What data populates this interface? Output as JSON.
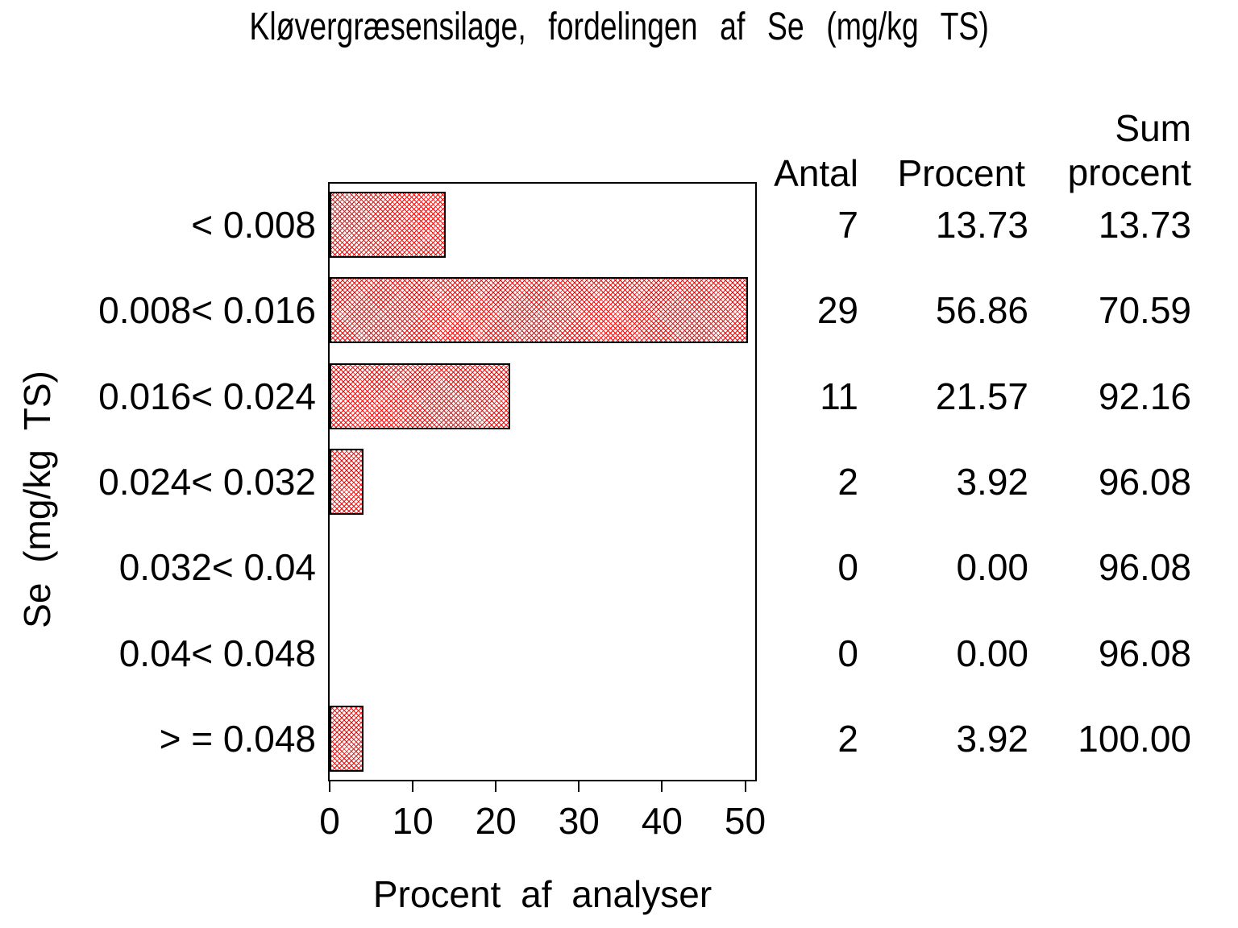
{
  "accent_black": "#000000",
  "background": "#ffffff",
  "chart_data": {
    "type": "bar",
    "orientation": "horizontal",
    "title": "Kløvergræsensilage, fordelingen af Se (mg/kg TS)",
    "xlabel": "Procent af analyser",
    "ylabel": "Se (mg/kg TS)",
    "categories": [
      "< 0.008",
      "0.008< 0.016",
      "0.016< 0.024",
      "0.024< 0.032",
      "0.032< 0.04",
      "0.04< 0.048",
      "> = 0.048"
    ],
    "series": [
      {
        "name": "Antal",
        "values": [
          7,
          29,
          11,
          2,
          0,
          0,
          2
        ]
      },
      {
        "name": "Procent",
        "values": [
          13.73,
          56.86,
          21.57,
          3.92,
          0.0,
          0.0,
          3.92
        ]
      },
      {
        "name": "Sum procent",
        "values": [
          13.73,
          70.59,
          92.16,
          96.08,
          96.08,
          96.08,
          100.0
        ]
      }
    ],
    "bars_show_series": "Procent",
    "xticks": [
      0,
      10,
      20,
      30,
      40,
      50
    ],
    "xlim": [
      0,
      51
    ],
    "grid": false,
    "legend": false,
    "bar_color": "#ea1010",
    "bar_fill_pattern": "diagonal-crosshatch"
  },
  "table": {
    "header_antal": "Antal",
    "header_procent": "Procent",
    "header_sum_line1": "Sum",
    "header_sum_line2": "procent"
  }
}
